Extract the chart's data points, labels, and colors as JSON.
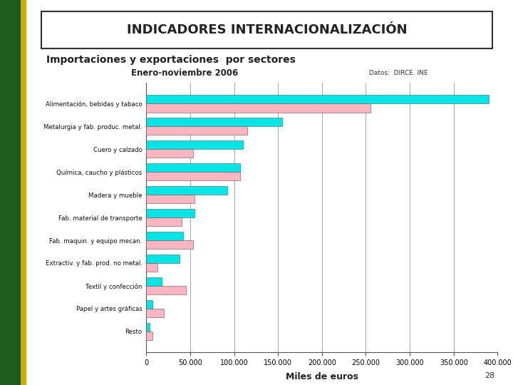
{
  "title": "INDICADORES INTERNACIONALIZACIÓN",
  "subtitle": "Importaciones y exportaciones  por sectores",
  "period": "Enero-noviembre 2006",
  "source": "Datos:  DIRCE. INE",
  "xlabel": "Miles de euros",
  "page": "28",
  "categories": [
    "Alimentación, bebidas y tabaco",
    "Metalurgia y fab. produc. metal.",
    "Cuero y calzado",
    "Química, caucho y plásticos",
    "Madera y mueble",
    "Fab. material de transporte",
    "Fab. maquin. y equipo mecan.",
    "Extractiv. y fab. prod. no metal.",
    "Textil y confección",
    "Papel y artes gráficas",
    "Resto"
  ],
  "exportaciones": [
    390000,
    155000,
    110000,
    107000,
    92000,
    55000,
    42000,
    38000,
    18000,
    7000,
    4000
  ],
  "importaciones": [
    255000,
    115000,
    53000,
    107000,
    55000,
    40000,
    53000,
    13000,
    45000,
    20000,
    7000
  ],
  "export_color": "#00E5E5",
  "import_color": "#FFB6C1",
  "bg_color": "#FFFFFF",
  "outer_bg": "#EFEFEF",
  "xlim": [
    0,
    400000
  ],
  "xticks": [
    0,
    50000,
    100000,
    150000,
    200000,
    250000,
    300000,
    350000,
    400000
  ],
  "grid_color": "#999999",
  "bar_height": 0.38,
  "green_bar_width": 0.04,
  "yellow_bar_width": 0.012
}
